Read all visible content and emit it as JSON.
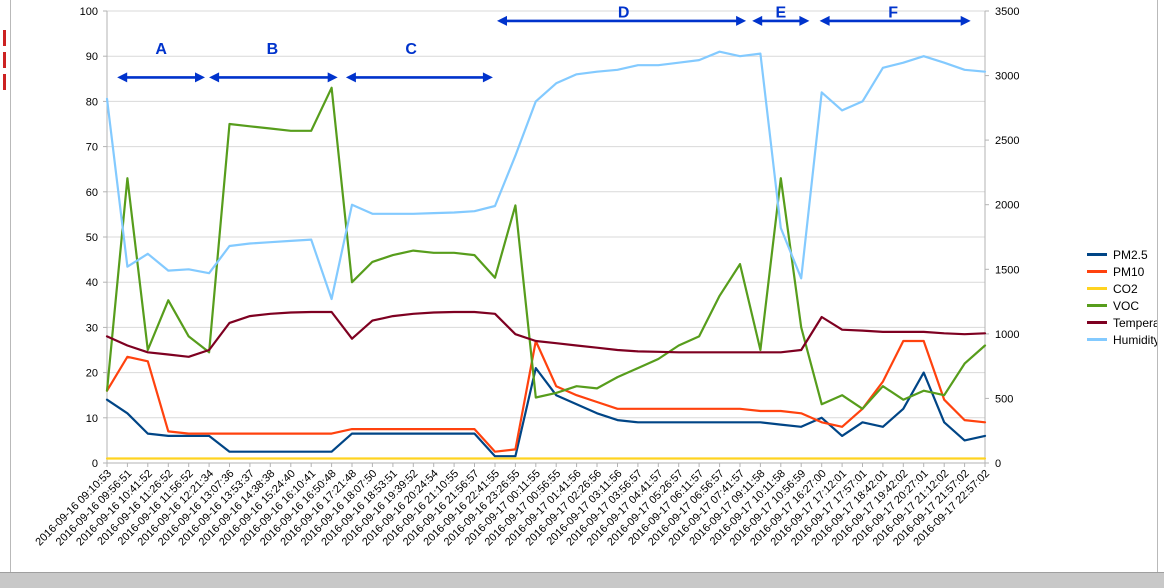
{
  "chart_data": {
    "type": "line",
    "title": "",
    "grid": "horizontal",
    "legend_position": "right",
    "annotation_color": "#0033CC",
    "categories": [
      "2016-09-16 09:10:53",
      "2016-09-16 09:56:51",
      "2016-09-16 10:41:52",
      "2016-09-16 11:26:52",
      "2016-09-16 11:56:52",
      "2016-09-16 12:21:34",
      "2016-09-16 13:07:36",
      "2016-09-16 13:53:37",
      "2016-09-16 14:38:38",
      "2016-09-16 15:24:40",
      "2016-09-16 16:10:41",
      "2016-09-16 16:50:48",
      "2016-09-16 17:21:48",
      "2016-09-16 18:07:50",
      "2016-09-16 18:53:51",
      "2016-09-16 19:39:52",
      "2016-09-16 20:24:54",
      "2016-09-16 21:10:55",
      "2016-09-16 21:56:57",
      "2016-09-16 22:41:55",
      "2016-09-16 23:26:55",
      "2016-09-17 00:11:55",
      "2016-09-17 00:56:55",
      "2016-09-17 01:41:56",
      "2016-09-17 02:26:56",
      "2016-09-17 03:11:56",
      "2016-09-17 03:56:57",
      "2016-09-17 04:41:57",
      "2016-09-17 05:26:57",
      "2016-09-17 06:11:57",
      "2016-09-17 06:56:57",
      "2016-09-17 07:41:57",
      "2016-09-17 09:11:58",
      "2016-09-17 10:11:58",
      "2016-09-17 10:56:59",
      "2016-09-17 16:27:00",
      "2016-09-17 17:12:01",
      "2016-09-17 17:57:01",
      "2016-09-17 18:42:01",
      "2016-09-17 19:42:02",
      "2016-09-17 20:27:01",
      "2016-09-17 21:12:02",
      "2016-09-17 21:57:02",
      "2016-09-17 22:57:02"
    ],
    "series": [
      {
        "name": "PM2.5",
        "color": "#004586",
        "axis": "left",
        "values": [
          14,
          11,
          6.5,
          6,
          6,
          6,
          2.5,
          2.5,
          2.5,
          2.5,
          2.5,
          2.5,
          6.5,
          6.5,
          6.5,
          6.5,
          6.5,
          6.5,
          6.5,
          1.5,
          1.5,
          21,
          15,
          13,
          11,
          9.5,
          9,
          9,
          9,
          9,
          9,
          9,
          9,
          8.5,
          8,
          10,
          6,
          9,
          8,
          12,
          20,
          9,
          5,
          6
        ]
      },
      {
        "name": "PM10",
        "color": "#FF420E",
        "axis": "left",
        "values": [
          16,
          23.5,
          22.5,
          7,
          6.5,
          6.5,
          6.5,
          6.5,
          6.5,
          6.5,
          6.5,
          6.5,
          7.5,
          7.5,
          7.5,
          7.5,
          7.5,
          7.5,
          7.5,
          2.5,
          3,
          27,
          17,
          15,
          13.5,
          12,
          12,
          12,
          12,
          12,
          12,
          12,
          11.5,
          11.5,
          11,
          9,
          8,
          12,
          18,
          27,
          27,
          14,
          9.5,
          9
        ]
      },
      {
        "name": "CO2",
        "color": "#FFD320",
        "axis": "left",
        "values": [
          1,
          1,
          1,
          1,
          1,
          1,
          1,
          1,
          1,
          1,
          1,
          1,
          1,
          1,
          1,
          1,
          1,
          1,
          1,
          1,
          1,
          1,
          1,
          1,
          1,
          1,
          1,
          1,
          1,
          1,
          1,
          1,
          1,
          1,
          1,
          1,
          1,
          1,
          1,
          1,
          1,
          1,
          1,
          1
        ]
      },
      {
        "name": "VOC",
        "color": "#579D1C",
        "axis": "left",
        "values": [
          16,
          63,
          25,
          36,
          28,
          24.5,
          75,
          74.5,
          74,
          73.5,
          73.5,
          83,
          40,
          44.5,
          46,
          47,
          46.5,
          46.5,
          46,
          41,
          57,
          14.5,
          15.5,
          17,
          16.5,
          19,
          21,
          23,
          26,
          28,
          37,
          44,
          25,
          63,
          30,
          13,
          15,
          12,
          17,
          14,
          16,
          15,
          22,
          26
        ]
      },
      {
        "name": "Temperature",
        "color": "#7E0021",
        "axis": "left",
        "values": [
          28,
          26,
          24.5,
          24,
          23.5,
          25,
          31,
          32.5,
          33,
          33.3,
          33.4,
          33.4,
          27.5,
          31.5,
          32.5,
          33,
          33.3,
          33.4,
          33.4,
          33,
          28.5,
          27,
          26.5,
          26,
          25.5,
          25,
          24.7,
          24.6,
          24.5,
          24.5,
          24.5,
          24.5,
          24.5,
          24.5,
          25,
          32.3,
          29.5,
          29.3,
          29,
          29,
          29,
          28.7,
          28.5,
          28.7
        ]
      },
      {
        "name": "Humidity",
        "color": "#83CAFF",
        "axis": "right",
        "values": [
          2820,
          1520,
          1620,
          1490,
          1500,
          1470,
          1680,
          1700,
          1710,
          1720,
          1730,
          1270,
          2000,
          1930,
          1930,
          1930,
          1935,
          1940,
          1950,
          1990,
          2380,
          2800,
          2940,
          3010,
          3030,
          3045,
          3080,
          3080,
          3100,
          3120,
          3185,
          3150,
          3170,
          1820,
          1430,
          2870,
          2730,
          2800,
          3060,
          3100,
          3150,
          3100,
          3045,
          3030
        ]
      }
    ],
    "left_axis": {
      "min": 0,
      "max": 100,
      "step": 10,
      "ticks": [
        "0",
        "10",
        "20",
        "30",
        "40",
        "50",
        "60",
        "70",
        "80",
        "90",
        "100"
      ]
    },
    "right_axis": {
      "min": 0,
      "max": 3500,
      "step": 500,
      "ticks": [
        "0",
        "500",
        "1000",
        "1500",
        "2000",
        "2500",
        "3000",
        "3500"
      ]
    },
    "annotations": [
      {
        "label": "A",
        "from": 0.5,
        "to": 4.8,
        "arrow_value": 85.3,
        "label_index": 2.65,
        "label_value": 90.5
      },
      {
        "label": "B",
        "from": 5.0,
        "to": 11.3,
        "arrow_value": 85.3,
        "label_index": 8.1,
        "label_value": 90.5
      },
      {
        "label": "C",
        "from": 11.7,
        "to": 18.9,
        "arrow_value": 85.3,
        "label_index": 14.9,
        "label_value": 90.5
      },
      {
        "label": "D",
        "from": 19.1,
        "to": 31.3,
        "arrow_value": 97.8,
        "label_index": 25.3,
        "label_value": 98.6
      },
      {
        "label": "E",
        "from": 31.6,
        "to": 34.4,
        "arrow_value": 97.8,
        "label_index": 33.0,
        "label_value": 98.6
      },
      {
        "label": "F",
        "from": 34.9,
        "to": 42.3,
        "arrow_value": 97.8,
        "label_index": 38.5,
        "label_value": 98.6
      }
    ]
  }
}
